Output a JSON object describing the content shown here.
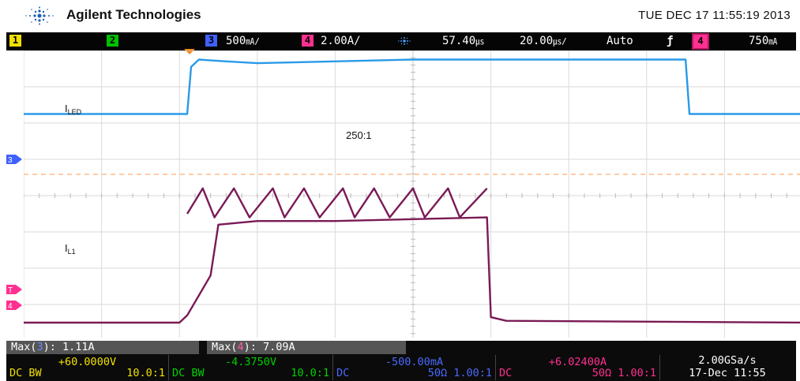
{
  "header": {
    "brand": "Agilent Technologies",
    "datetime": "TUE DEC 17 11:55:19 2013"
  },
  "channel_bar": {
    "ch1_num": "1",
    "ch2_num": "2",
    "ch3_num": "3",
    "ch3_scale": "500",
    "ch3_unit": "㎃/",
    "ch4_num": "4",
    "ch4_scale": "2.00A/",
    "time_pos": "57.40",
    "time_pos_unit": "㎲",
    "time_scale": "20.00",
    "time_scale_unit": "㎲/",
    "trigger_mode": "Auto",
    "trigger_slope": "ƒ",
    "trigger_ch": "4",
    "trigger_level": "750",
    "trigger_level_unit": "㎃",
    "colors": {
      "ch1": "#f0e000",
      "ch2": "#00c000",
      "ch3": "#4060ff",
      "ch4": "#ff3090",
      "ch3_trace": "#2a9ae8",
      "ch4_trace": "#7a1a55"
    }
  },
  "markers": {
    "ch3": "3",
    "ch4": "4",
    "trigger": "T"
  },
  "chart_data": {
    "type": "line",
    "title": "",
    "annotations": [
      "I",
      "LED",
      "I",
      "L1",
      "250:1"
    ],
    "x_divisions": 10,
    "y_divisions": 8,
    "xlim": [
      0,
      10
    ],
    "ylim": [
      0,
      8
    ],
    "series": [
      {
        "channel": "3",
        "x": [
          0,
          2.1,
          2.15,
          2.25,
          2.6,
          3.0,
          4.0,
          5.0,
          5.95,
          6.0,
          6.3,
          7.0,
          8.0,
          8.45,
          8.5,
          8.55,
          10
        ],
        "y": [
          6.25,
          6.25,
          7.55,
          7.75,
          7.7,
          7.65,
          7.7,
          7.75,
          7.75,
          7.75,
          7.75,
          7.75,
          7.75,
          7.75,
          7.75,
          6.25,
          6.25
        ]
      },
      {
        "channel": "4",
        "x": [
          0,
          2.0,
          2.1,
          2.4,
          2.5,
          3.0,
          4.0,
          5.95,
          6.0,
          6.2,
          10
        ],
        "y": [
          0.5,
          0.5,
          0.7,
          1.8,
          3.2,
          3.3,
          3.3,
          3.4,
          0.65,
          0.55,
          0.5
        ]
      },
      {
        "channel": "4 ripple",
        "x": [
          2.1,
          2.3,
          2.45,
          2.7,
          2.9,
          3.2,
          3.35,
          3.6,
          3.8,
          4.1,
          4.25,
          4.5,
          4.7,
          5.0,
          5.15,
          5.45,
          5.6,
          5.95
        ],
        "y": [
          3.5,
          4.2,
          3.4,
          4.2,
          3.4,
          4.2,
          3.4,
          4.2,
          3.4,
          4.2,
          3.4,
          4.2,
          3.4,
          4.2,
          3.4,
          4.2,
          3.4,
          4.2
        ]
      }
    ]
  },
  "measurements": {
    "max3_label": "Max(",
    "max3_ch": "3",
    "max3_value": "): 1.11A",
    "max4_label": "Max(",
    "max4_ch": "4",
    "max4_value": "): 7.09A",
    "ch1_offset": "+60.0000V",
    "ch1_coupling": "DC BW",
    "ch1_probe": "10.0:1",
    "ch2_offset": "-4.3750V",
    "ch2_coupling": "DC BW",
    "ch2_probe": "10.0:1",
    "ch3_offset": "-500.00mA",
    "ch3_coupling": "DC",
    "ch3_probe": "50Ω  1.00:1",
    "ch4_offset": "+6.02400A",
    "ch4_coupling": "DC",
    "ch4_probe": "50Ω  1.00:1",
    "sample_rate": "2.00GSa/s",
    "date": "17-Dec 11:55"
  }
}
